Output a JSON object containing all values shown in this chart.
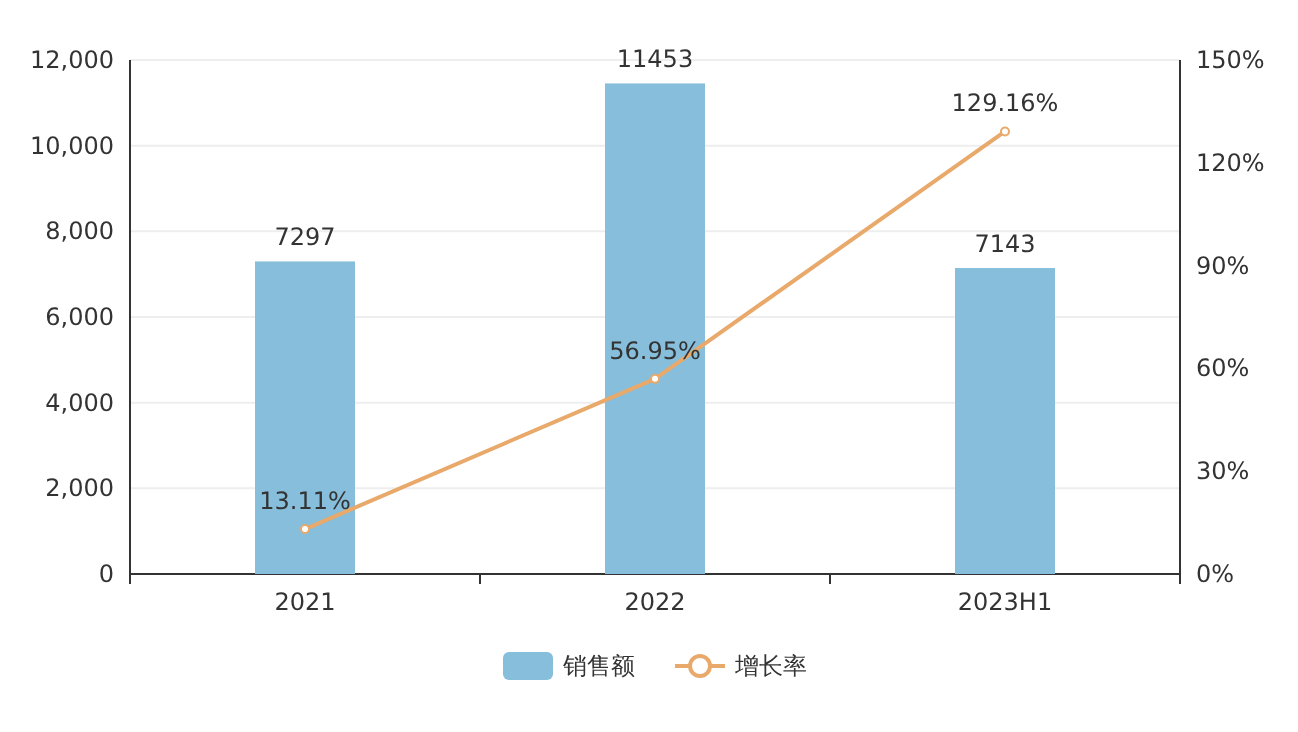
{
  "chart_data": {
    "type": "bar",
    "categories": [
      "2021",
      "2022",
      "2023H1"
    ],
    "series": [
      {
        "name": "销售额",
        "color": "#86bedb",
        "values": [
          7297,
          11453,
          7143
        ],
        "value_labels": [
          "7297",
          "11453",
          "7143"
        ]
      },
      {
        "name": "增长率",
        "type": "line",
        "axis": "y2",
        "color": "#e8a96b",
        "values": [
          13.11,
          56.95,
          129.16
        ],
        "value_labels": [
          "13.11%",
          "56.95%",
          "129.16%"
        ]
      }
    ],
    "ylim": [
      0,
      12000
    ],
    "yticks": [
      0,
      {
        "value": 2000,
        "label": "2,000"
      },
      {
        "value": 4000,
        "label": "4,000"
      },
      {
        "value": 6000,
        "label": "6,000"
      },
      {
        "value": 8000,
        "label": "8,000"
      },
      {
        "value": 10000,
        "label": "10,000"
      },
      {
        "value": 12000,
        "label": "12,000"
      }
    ],
    "y2lim": [
      0,
      150
    ],
    "y2ticks": [
      {
        "value": 0,
        "label": "0%"
      },
      {
        "value": 30,
        "label": "30%"
      },
      {
        "value": 60,
        "label": "60%"
      },
      {
        "value": 90,
        "label": "90%"
      },
      {
        "value": 120,
        "label": "120%"
      },
      {
        "value": 150,
        "label": "150%"
      }
    ],
    "grid": "y",
    "legend": "bottom",
    "marker": "circle"
  }
}
